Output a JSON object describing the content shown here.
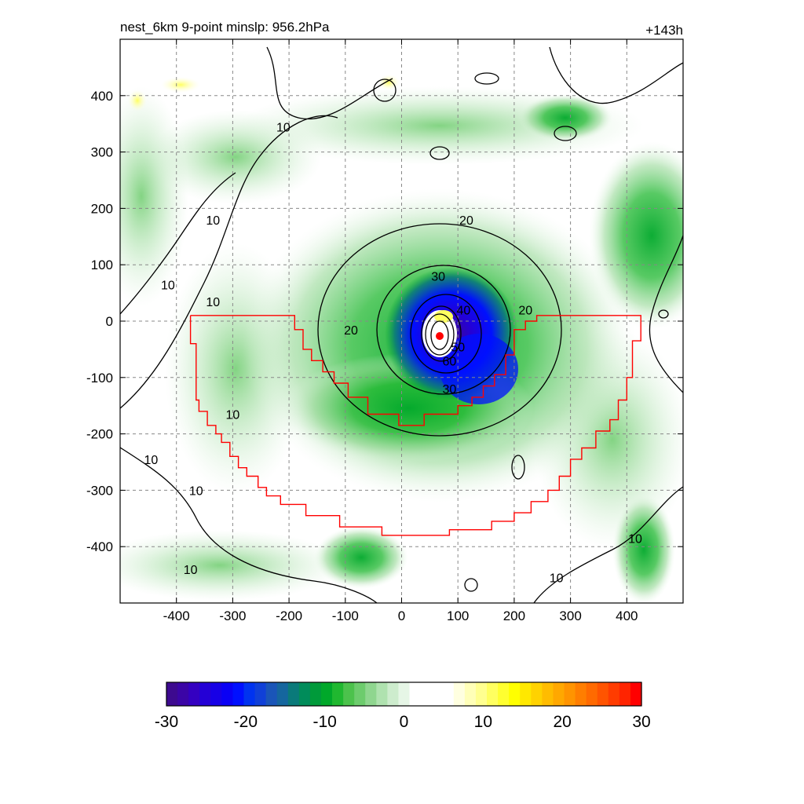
{
  "header": {
    "title_left": "nest_6km  9-point minslp: 956.2hPa",
    "title_right": "+143h"
  },
  "chart_data": {
    "type": "heatmap",
    "title": "nest_6km  9-point minslp: 956.2hPa",
    "time_label": "+143h",
    "xlim": [
      -500,
      500
    ],
    "ylim": [
      -500,
      500
    ],
    "x_ticks": [
      "-400",
      "-300",
      "-200",
      "-100",
      "0",
      "100",
      "200",
      "300",
      "400"
    ],
    "y_ticks": [
      "400",
      "300",
      "200",
      "100",
      "0",
      "-100",
      "-200",
      "-300",
      "-400"
    ],
    "x_tick_values": [
      -400,
      -300,
      -200,
      -100,
      0,
      100,
      200,
      300,
      400
    ],
    "y_tick_values": [
      400,
      300,
      200,
      100,
      0,
      -100,
      -200,
      -300,
      -400
    ],
    "grid": true,
    "field_shading": {
      "center": [
        70,
        -27
      ],
      "eyewall_min": -30,
      "description_levels": "shaded field"
    },
    "contour_labels": [
      {
        "text": "10",
        "x": -210,
        "y": 345
      },
      {
        "text": "10",
        "x": -335,
        "y": 180
      },
      {
        "text": "10",
        "x": -415,
        "y": 65
      },
      {
        "text": "10",
        "x": -335,
        "y": 35
      },
      {
        "text": "10",
        "x": -300,
        "y": -165
      },
      {
        "text": "10",
        "x": -445,
        "y": -245
      },
      {
        "text": "10",
        "x": -365,
        "y": -300
      },
      {
        "text": "10",
        "x": -375,
        "y": -440
      },
      {
        "text": "10",
        "x": 275,
        "y": -455
      },
      {
        "text": "10",
        "x": 415,
        "y": -385
      },
      {
        "text": "20",
        "x": 115,
        "y": 180
      },
      {
        "text": "20",
        "x": -90,
        "y": -15
      },
      {
        "text": "20",
        "x": 220,
        "y": 20
      },
      {
        "text": "30",
        "x": 65,
        "y": 80
      },
      {
        "text": "30",
        "x": 85,
        "y": -120
      },
      {
        "text": "40",
        "x": 110,
        "y": 20
      },
      {
        "text": "50",
        "x": 100,
        "y": -45
      },
      {
        "text": "60",
        "x": 85,
        "y": -70
      }
    ],
    "red_boundary": [
      [
        -375,
        10
      ],
      [
        -190,
        10
      ],
      [
        -190,
        -15
      ],
      [
        -175,
        -15
      ],
      [
        -175,
        -50
      ],
      [
        -160,
        -50
      ],
      [
        -160,
        -70
      ],
      [
        -140,
        -70
      ],
      [
        -140,
        -90
      ],
      [
        -120,
        -90
      ],
      [
        -120,
        -110
      ],
      [
        -95,
        -110
      ],
      [
        -95,
        -135
      ],
      [
        -60,
        -135
      ],
      [
        -60,
        -165
      ],
      [
        -5,
        -165
      ],
      [
        -5,
        -185
      ],
      [
        40,
        -185
      ],
      [
        40,
        -165
      ],
      [
        100,
        -165
      ],
      [
        100,
        -150
      ],
      [
        125,
        -150
      ],
      [
        125,
        -135
      ],
      [
        145,
        -135
      ],
      [
        145,
        -115
      ],
      [
        165,
        -115
      ],
      [
        165,
        -95
      ],
      [
        185,
        -95
      ],
      [
        185,
        -60
      ],
      [
        200,
        -60
      ],
      [
        200,
        -15
      ],
      [
        220,
        -15
      ],
      [
        220,
        0
      ],
      [
        240,
        0
      ],
      [
        240,
        10
      ],
      [
        425,
        10
      ],
      [
        425,
        -35
      ],
      [
        410,
        -35
      ],
      [
        410,
        -100
      ],
      [
        400,
        -100
      ],
      [
        400,
        -140
      ],
      [
        385,
        -140
      ],
      [
        385,
        -175
      ],
      [
        370,
        -175
      ],
      [
        370,
        -195
      ],
      [
        345,
        -195
      ],
      [
        345,
        -225
      ],
      [
        320,
        -225
      ],
      [
        320,
        -245
      ],
      [
        300,
        -245
      ],
      [
        300,
        -275
      ],
      [
        280,
        -275
      ],
      [
        280,
        -300
      ],
      [
        260,
        -300
      ],
      [
        260,
        -320
      ],
      [
        230,
        -320
      ],
      [
        230,
        -340
      ],
      [
        200,
        -340
      ],
      [
        200,
        -355
      ],
      [
        160,
        -355
      ],
      [
        160,
        -370
      ],
      [
        85,
        -370
      ],
      [
        85,
        -380
      ],
      [
        -35,
        -380
      ],
      [
        -35,
        -365
      ],
      [
        -110,
        -365
      ],
      [
        -110,
        -345
      ],
      [
        -170,
        -345
      ],
      [
        -170,
        -325
      ],
      [
        -215,
        -325
      ],
      [
        -215,
        -310
      ],
      [
        -240,
        -310
      ],
      [
        -240,
        -295
      ],
      [
        -255,
        -295
      ],
      [
        -255,
        -275
      ],
      [
        -275,
        -275
      ],
      [
        -275,
        -260
      ],
      [
        -290,
        -260
      ],
      [
        -290,
        -240
      ],
      [
        -305,
        -240
      ],
      [
        -305,
        -215
      ],
      [
        -320,
        -215
      ],
      [
        -320,
        -200
      ],
      [
        -330,
        -200
      ],
      [
        -330,
        -185
      ],
      [
        -345,
        -185
      ],
      [
        -345,
        -160
      ],
      [
        -360,
        -160
      ],
      [
        -360,
        -140
      ],
      [
        -365,
        -140
      ],
      [
        -365,
        -100
      ],
      [
        -365,
        -40
      ],
      [
        -375,
        -40
      ],
      [
        -375,
        10
      ]
    ],
    "colorbar": {
      "min": -30,
      "max": 30,
      "tick_labels": [
        "-30",
        "-20",
        "-10",
        "0",
        "10",
        "20",
        "30"
      ],
      "tick_values": [
        -30,
        -20,
        -10,
        0,
        10,
        20,
        30
      ],
      "colors": [
        "#3d0a8f",
        "#3b05a6",
        "#3400c1",
        "#2400d6",
        "#1700e6",
        "#0a00f5",
        "#0010ff",
        "#0033f0",
        "#1040d8",
        "#1a55b8",
        "#15669e",
        "#0a7a7a",
        "#008c5a",
        "#009a3a",
        "#00a82a",
        "#20b830",
        "#4cc24c",
        "#6dcc6d",
        "#8fd68f",
        "#afe2af",
        "#cdeccd",
        "#e6f6e6",
        "#ffffff",
        "#ffffff",
        "#ffffff",
        "#ffffff",
        "#ffffe0",
        "#ffffb8",
        "#ffff90",
        "#ffff60",
        "#ffff30",
        "#ffff00",
        "#ffe800",
        "#ffd200",
        "#ffbc00",
        "#ffa800",
        "#ff9400",
        "#ff7e00",
        "#ff6a00",
        "#ff5400",
        "#ff3c00",
        "#ff2400",
        "#ff0000"
      ]
    }
  }
}
